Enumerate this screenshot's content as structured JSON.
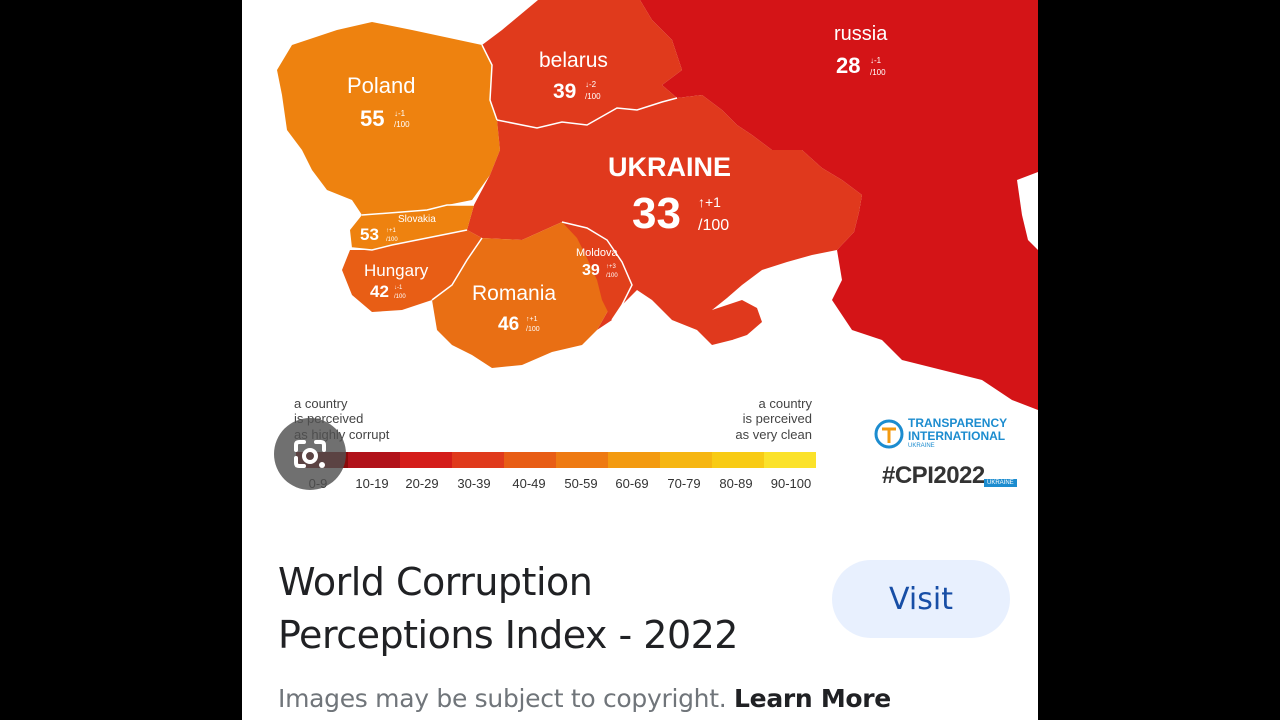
{
  "map": {
    "countries": [
      {
        "name": "Poland",
        "score": "55",
        "change": "↓-1",
        "out_of": "/100"
      },
      {
        "name": "belarus",
        "score": "39",
        "change": "↓-2",
        "out_of": "/100"
      },
      {
        "name": "russia",
        "score": "28",
        "change": "↓-1",
        "out_of": "/100"
      },
      {
        "name": "UKRAINE",
        "score": "33",
        "change": "↑+1",
        "out_of": "/100"
      },
      {
        "name": "Slovakia",
        "score": "53",
        "change": "↑+1",
        "out_of": "/100"
      },
      {
        "name": "Hungary",
        "score": "42",
        "change": "↓-1",
        "out_of": "/100"
      },
      {
        "name": "Romania",
        "score": "46",
        "change": "↑+1",
        "out_of": "/100"
      },
      {
        "name": "Moldova",
        "score": "39",
        "change": "↑+3",
        "out_of": "/100"
      }
    ],
    "legend": {
      "left_caption": [
        "a country",
        "is perceived",
        "as highly corrupt"
      ],
      "right_caption": [
        "a country",
        "is perceived",
        "as very clean"
      ],
      "ranges": [
        "0-9",
        "10-19",
        "20-29",
        "30-39",
        "40-49",
        "50-59",
        "60-69",
        "70-79",
        "80-89",
        "90-100"
      ],
      "colors": [
        "#8b0a0a",
        "#b1121a",
        "#d41d1a",
        "#e03a1c",
        "#e85d15",
        "#ee7a12",
        "#f39a10",
        "#f6b612",
        "#f8cb14",
        "#fbe22a"
      ]
    },
    "logo": {
      "line1": "TRANSPARENCY",
      "line2": "INTERNATIONAL",
      "line3": "UKRAINE"
    },
    "hashtag": "#CPI2022",
    "hashtag_badge": "UKRAINE"
  },
  "result": {
    "title_line1": "World Corruption",
    "title_line2": "Perceptions Index - 2022",
    "visit_label": "Visit",
    "copyright": "Images may be subject to copyright.",
    "learn_more": "Learn More"
  },
  "icons": {
    "lens": "google-lens-icon",
    "ti": "transparency-logo-icon"
  }
}
